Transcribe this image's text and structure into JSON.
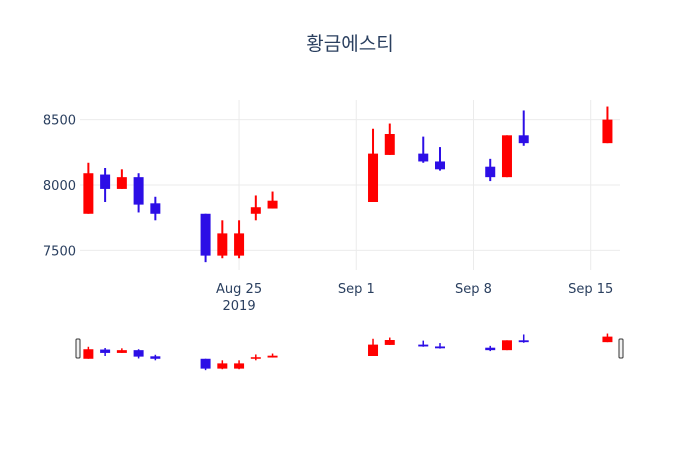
{
  "chart_data": {
    "type": "candlestick",
    "title": "황금에스티",
    "xlabel": "",
    "ylabel": "",
    "ylim": [
      7350,
      8650
    ],
    "xlim": [
      "2019-08-16",
      "2019-09-16"
    ],
    "grid": true,
    "legend": "none",
    "increasing_color": "#ff0000",
    "decreasing_color": "#2c0ee6",
    "range_slider": true,
    "x_ticks": [
      {
        "date": "2019-08-25",
        "label": "Aug 25",
        "sublabel": "2019"
      },
      {
        "date": "2019-09-01",
        "label": "Sep 1",
        "sublabel": ""
      },
      {
        "date": "2019-09-08",
        "label": "Sep 8",
        "sublabel": ""
      },
      {
        "date": "2019-09-15",
        "label": "Sep 15",
        "sublabel": ""
      }
    ],
    "y_ticks": [
      {
        "value": 7500,
        "label": "7500"
      },
      {
        "value": 8000,
        "label": "8000"
      },
      {
        "value": 8500,
        "label": "8500"
      }
    ],
    "candles": [
      {
        "date": "2019-08-16",
        "open": 7780,
        "high": 8170,
        "low": 7780,
        "close": 8090
      },
      {
        "date": "2019-08-17",
        "open": 8080,
        "high": 8130,
        "low": 7870,
        "close": 7970
      },
      {
        "date": "2019-08-18",
        "open": 7970,
        "high": 8120,
        "low": 7970,
        "close": 8060
      },
      {
        "date": "2019-08-19",
        "open": 8060,
        "high": 8090,
        "low": 7790,
        "close": 7850
      },
      {
        "date": "2019-08-20",
        "open": 7860,
        "high": 7910,
        "low": 7730,
        "close": 7780
      },
      {
        "date": "2019-08-23",
        "open": 7780,
        "high": 7780,
        "low": 7410,
        "close": 7460
      },
      {
        "date": "2019-08-24",
        "open": 7460,
        "high": 7730,
        "low": 7440,
        "close": 7630
      },
      {
        "date": "2019-08-25",
        "open": 7460,
        "high": 7730,
        "low": 7440,
        "close": 7630
      },
      {
        "date": "2019-08-26",
        "open": 7780,
        "high": 7920,
        "low": 7730,
        "close": 7830
      },
      {
        "date": "2019-08-27",
        "open": 7820,
        "high": 7950,
        "low": 7820,
        "close": 7880
      },
      {
        "date": "2019-09-02",
        "open": 7870,
        "high": 8430,
        "low": 7870,
        "close": 8240
      },
      {
        "date": "2019-09-03",
        "open": 8230,
        "high": 8470,
        "low": 8230,
        "close": 8390
      },
      {
        "date": "2019-09-05",
        "open": 8240,
        "high": 8370,
        "low": 8170,
        "close": 8180
      },
      {
        "date": "2019-09-06",
        "open": 8180,
        "high": 8290,
        "low": 8110,
        "close": 8120
      },
      {
        "date": "2019-09-09",
        "open": 8140,
        "high": 8200,
        "low": 8030,
        "close": 8060
      },
      {
        "date": "2019-09-10",
        "open": 8060,
        "high": 8380,
        "low": 8060,
        "close": 8380
      },
      {
        "date": "2019-09-11",
        "open": 8380,
        "high": 8570,
        "low": 8300,
        "close": 8320
      },
      {
        "date": "2019-09-16",
        "open": 8320,
        "high": 8600,
        "low": 8320,
        "close": 8500
      }
    ]
  }
}
